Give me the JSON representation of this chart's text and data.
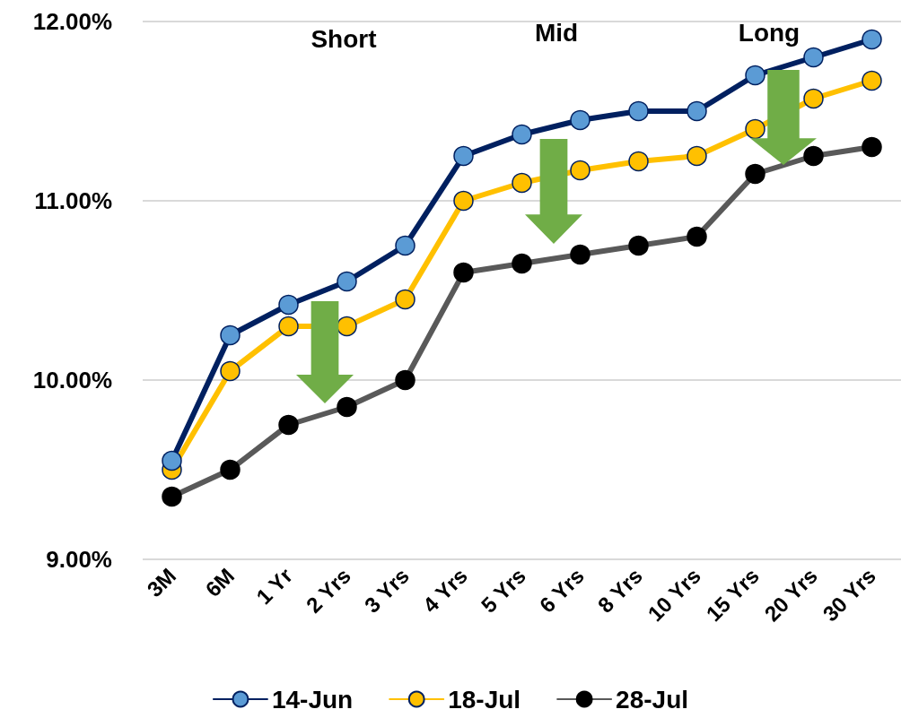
{
  "chart_data": {
    "type": "line",
    "categories": [
      "3M",
      "6M",
      "1 Yr",
      "2 Yrs",
      "3 Yrs",
      "4 Yrs",
      "5 Yrs",
      "6 Yrs",
      "8 Yrs",
      "10 Yrs",
      "15 Yrs",
      "20 Yrs",
      "30 Yrs"
    ],
    "series": [
      {
        "name": "14-Jun",
        "color": "#002060",
        "values": [
          9.55,
          10.25,
          10.42,
          10.55,
          10.75,
          11.25,
          11.37,
          11.45,
          11.5,
          11.5,
          11.7,
          11.8,
          11.9
        ]
      },
      {
        "name": "18-Jul",
        "color": "#ffc000",
        "values": [
          9.5,
          10.05,
          10.3,
          10.3,
          10.45,
          11.0,
          11.1,
          11.17,
          11.22,
          11.25,
          11.4,
          11.57,
          11.67
        ]
      },
      {
        "name": "28-Jul",
        "color": "#595959",
        "values": [
          9.35,
          9.5,
          9.75,
          9.85,
          10.0,
          10.6,
          10.65,
          10.7,
          10.75,
          10.8,
          11.15,
          11.25,
          11.3
        ]
      }
    ],
    "ylim": [
      9,
      12
    ],
    "yticks": [
      {
        "value": 9,
        "label": "9.00%"
      },
      {
        "value": 10,
        "label": "10.00%"
      },
      {
        "value": 11,
        "label": "11.00%"
      },
      {
        "value": 12,
        "label": "12.00%"
      }
    ],
    "grid": "y",
    "legend": "bottom",
    "marker": "circle",
    "line_style": "solid",
    "annotations": [
      "Short",
      "Mid",
      "Long"
    ]
  }
}
